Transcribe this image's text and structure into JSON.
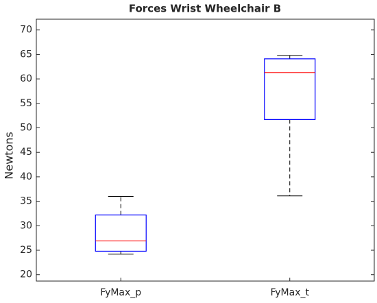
{
  "chart_data": {
    "type": "box",
    "title": "Forces Wrist Wheelchair B",
    "y_label": "Newtons",
    "categories": [
      "FyMax_p",
      "FyMax_t"
    ],
    "boxes": [
      {
        "min": 24.2,
        "q1": 24.8,
        "median": 26.9,
        "q3": 32.2,
        "max": 36.0
      },
      {
        "min": 36.1,
        "q1": 51.7,
        "median": 61.3,
        "q3": 64.1,
        "max": 64.8
      }
    ],
    "box_color": "#0000ff",
    "median_color": "#ff0000",
    "whisker_color": "#000000",
    "ylim": [
      18.7,
      72.2
    ],
    "yticks": [
      20,
      25,
      30,
      35,
      40,
      45,
      50,
      55,
      60,
      65,
      70
    ]
  }
}
